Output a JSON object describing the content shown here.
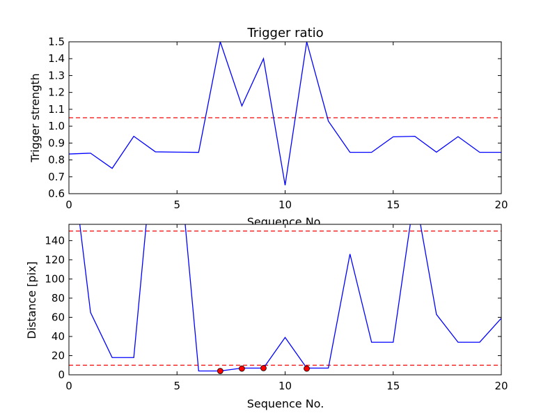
{
  "chart_data": [
    {
      "type": "line",
      "title": "Trigger ratio",
      "xlabel": "Sequence No.",
      "ylabel": "Trigger strength",
      "xlim": [
        0,
        20
      ],
      "ylim": [
        0.6,
        1.5
      ],
      "x_ticks": [
        0,
        5,
        10,
        15,
        20
      ],
      "y_ticks": [
        0.6,
        0.7,
        0.8,
        0.9,
        1.0,
        1.1,
        1.2,
        1.3,
        1.4,
        1.5
      ],
      "grid": false,
      "series": [
        {
          "color": "#0000ff",
          "x": [
            0,
            1,
            2,
            3,
            4,
            5,
            6,
            7,
            8,
            9,
            10,
            11,
            12,
            13,
            14,
            15,
            16,
            17,
            18,
            19,
            20
          ],
          "values": [
            0.835,
            0.84,
            0.75,
            0.94,
            0.848,
            0.846,
            0.845,
            1.5,
            1.12,
            1.4,
            0.65,
            1.5,
            1.03,
            0.845,
            0.845,
            0.937,
            0.94,
            0.846,
            0.938,
            0.845,
            0.845
          ]
        }
      ],
      "hlines": [
        {
          "y": 1.05,
          "color": "#ff0000",
          "style": "dashed"
        }
      ]
    },
    {
      "type": "line",
      "title": "",
      "xlabel": "Sequence No.",
      "ylabel": "Distance [pix]",
      "xlim": [
        0,
        20
      ],
      "ylim": [
        0,
        157
      ],
      "x_ticks": [
        0,
        5,
        10,
        15,
        20
      ],
      "y_ticks": [
        0,
        20,
        40,
        60,
        80,
        100,
        120,
        140
      ],
      "grid": false,
      "series": [
        {
          "color": "#0000ff",
          "x": [
            0,
            1,
            2,
            3,
            4,
            5,
            6,
            7,
            8,
            9,
            10,
            11,
            12,
            13,
            14,
            15,
            16,
            17,
            18,
            19,
            20
          ],
          "values": [
            250,
            65,
            18,
            18,
            260,
            250,
            4,
            4,
            7,
            7,
            39,
            7,
            7,
            126,
            34,
            34,
            190,
            63,
            34,
            34,
            59
          ]
        }
      ],
      "markers": {
        "color": "#ff0000",
        "x": [
          7,
          8,
          9,
          11
        ],
        "values": [
          4,
          6.5,
          7,
          6.5
        ]
      },
      "hlines": [
        {
          "y": 150,
          "color": "#ff0000",
          "style": "dashed"
        },
        {
          "y": 10,
          "color": "#ff0000",
          "style": "dashed"
        }
      ]
    }
  ]
}
